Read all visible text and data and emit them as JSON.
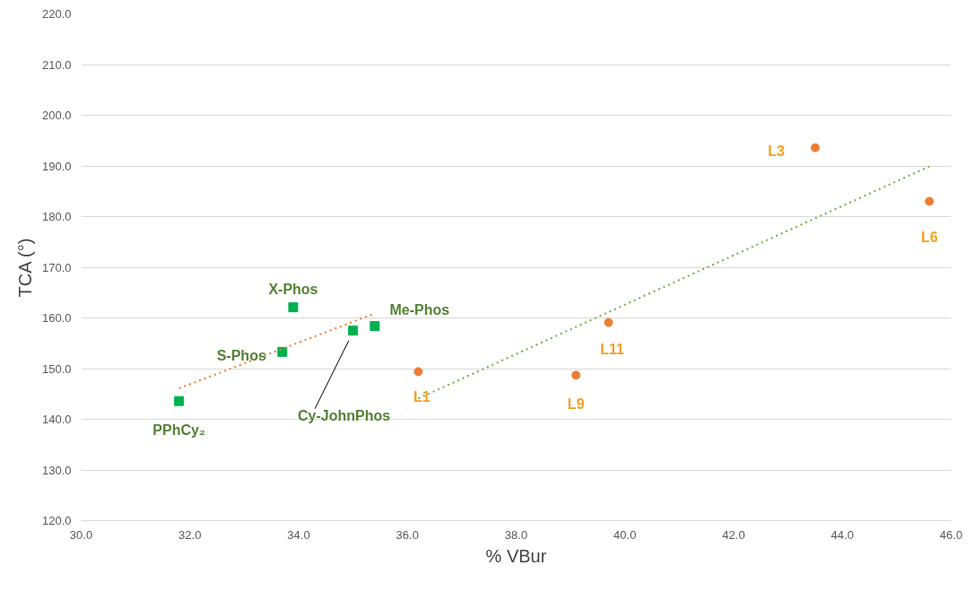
{
  "chart_data": {
    "type": "scatter",
    "xlabel": "% VBur",
    "ylabel": "TCA (°)",
    "xlim": [
      30,
      46
    ],
    "ylim": [
      120,
      220
    ],
    "xticks": [
      {
        "value": 30,
        "label": "30.0"
      },
      {
        "value": 32,
        "label": "32.0"
      },
      {
        "value": 34,
        "label": "34.0"
      },
      {
        "value": 36,
        "label": "36.0"
      },
      {
        "value": 38,
        "label": "38.0"
      },
      {
        "value": 40,
        "label": "40.0"
      },
      {
        "value": 42,
        "label": "42.0"
      },
      {
        "value": 44,
        "label": "44.0"
      },
      {
        "value": 46,
        "label": "46.0"
      }
    ],
    "yticks": [
      {
        "value": 120,
        "label": "120.0"
      },
      {
        "value": 130,
        "label": "130.0"
      },
      {
        "value": 140,
        "label": "140.0"
      },
      {
        "value": 150,
        "label": "150.0"
      },
      {
        "value": 160,
        "label": "160.0"
      },
      {
        "value": 170,
        "label": "170.0"
      },
      {
        "value": 180,
        "label": "180.0"
      },
      {
        "value": 190,
        "label": "190.0"
      },
      {
        "value": 200,
        "label": "200.0"
      },
      {
        "value": 210,
        "label": "210.0"
      },
      {
        "value": 220,
        "label": "220.0"
      }
    ],
    "grid": "y",
    "series": [
      {
        "type": "scatter",
        "marker": "square",
        "color": "#00b050",
        "x": [
          31.8,
          33.7,
          33.9,
          35.0,
          35.4
        ],
        "values": [
          143.6,
          153.3,
          162.1,
          157.5,
          158.4
        ]
      },
      {
        "type": "scatter",
        "marker": "circle",
        "color": "#ed7d31",
        "x": [
          36.2,
          39.1,
          39.7,
          43.5,
          45.6
        ],
        "values": [
          149.4,
          148.7,
          159.1,
          193.6,
          183.0
        ]
      },
      {
        "type": "line",
        "marker": "none",
        "line_style": "dotted",
        "color": "#ed7d31",
        "x": [
          31.8,
          35.4
        ],
        "values": [
          146.1,
          160.9
        ]
      },
      {
        "type": "line",
        "marker": "none",
        "line_style": "dotted",
        "color": "#70ad47",
        "x": [
          36.2,
          45.6
        ],
        "values": [
          144.1,
          189.9
        ]
      }
    ],
    "annotations": [
      {
        "text": "PPhCy₂",
        "x": 31.8,
        "y": 143.6
      },
      {
        "text": "S-Phos",
        "x": 33.7,
        "y": 153.3
      },
      {
        "text": "X-Phos",
        "x": 33.9,
        "y": 162.1
      },
      "Cy-JohnPhos",
      {
        "text": "Me-Phos",
        "x": 35.4,
        "y": 158.4
      },
      {
        "text": "L1",
        "x": 36.2,
        "y": 149.4
      },
      {
        "text": "L9",
        "x": 39.1,
        "y": 148.7
      },
      {
        "text": "L11",
        "x": 39.7,
        "y": 159.1
      },
      {
        "text": "L3",
        "x": 43.5,
        "y": 193.6
      },
      {
        "text": "L6",
        "x": 45.6,
        "y": 183.0
      }
    ]
  }
}
